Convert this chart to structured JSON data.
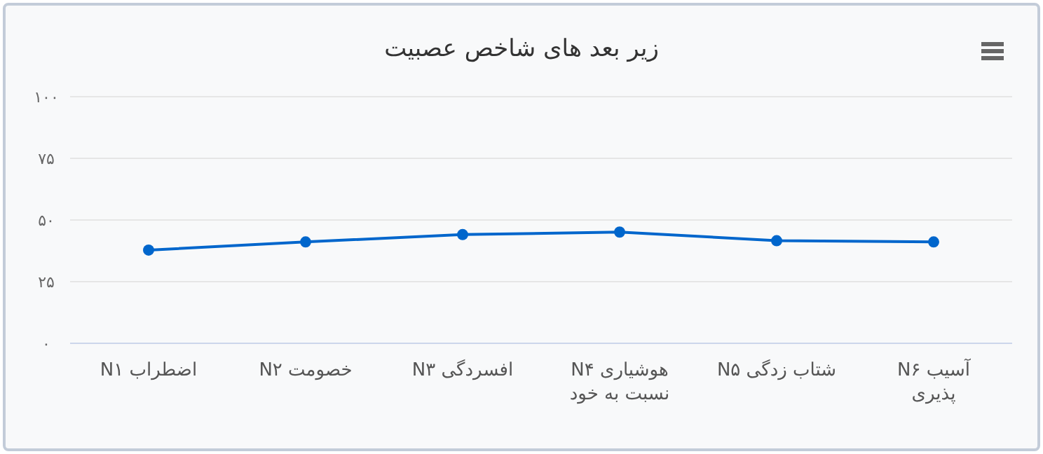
{
  "chart_data": {
    "type": "line",
    "title": "زیر بعد های شاخص عصبیت",
    "categories": [
      "اضطراب N۱",
      "خصومت N۲",
      "افسردگی N۳",
      "هوشیاری N۴ نسبت به خود",
      "شتاب زدگی N۵",
      "آسیب N۶ پذیری"
    ],
    "series": [
      {
        "color": "#0066cc",
        "values": [
          37.8,
          41.1,
          44.1,
          45.1,
          41.6,
          41.1
        ]
      }
    ],
    "ylim": [
      0,
      100
    ],
    "yticks": [
      {
        "value": 0,
        "label": "۰"
      },
      {
        "value": 25,
        "label": "۲۵"
      },
      {
        "value": 50,
        "label": "۵۰"
      },
      {
        "value": 75,
        "label": "۷۵"
      },
      {
        "value": 100,
        "label": "۱۰۰"
      }
    ],
    "grid": "y",
    "marker": "circle",
    "line_style": "solid"
  }
}
